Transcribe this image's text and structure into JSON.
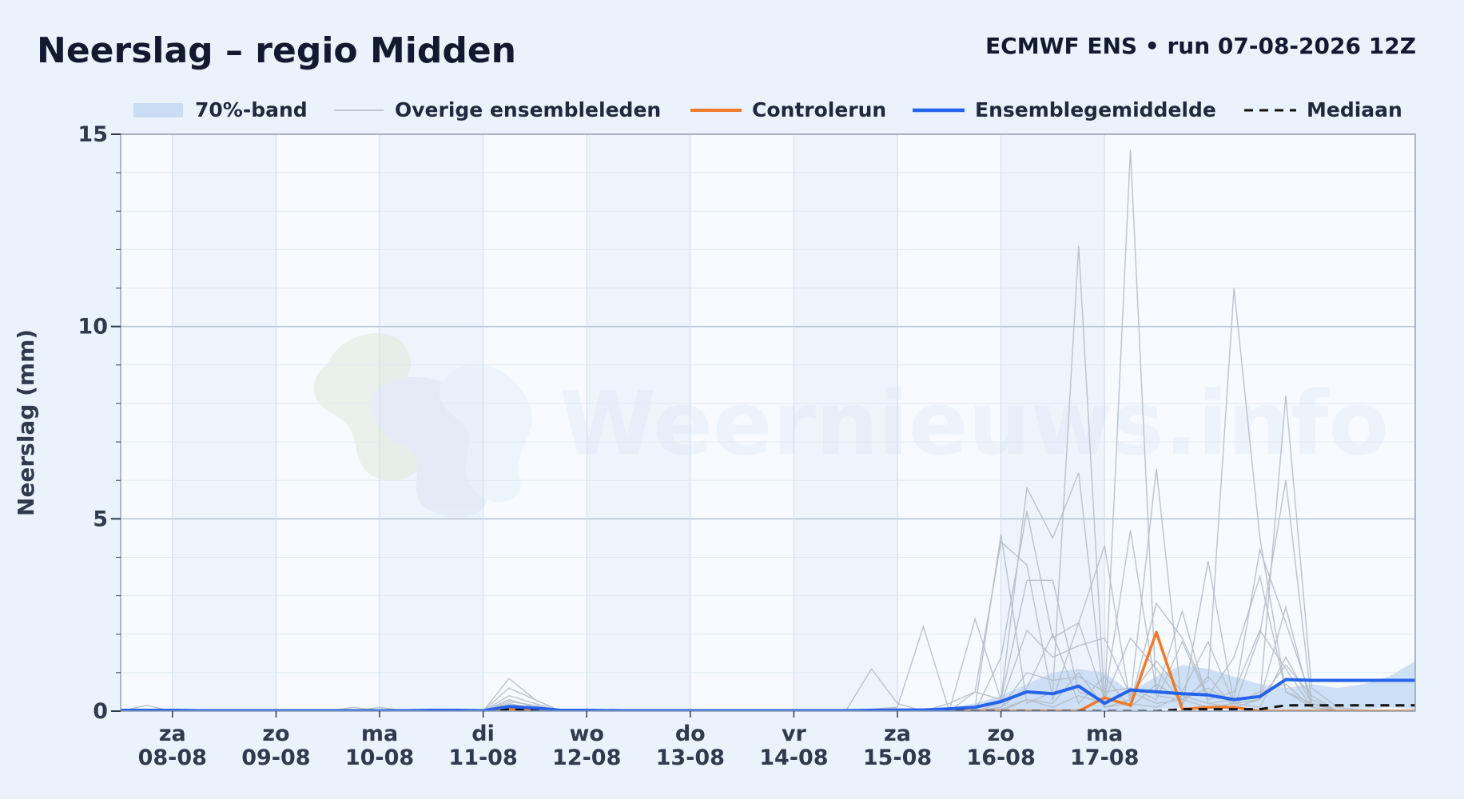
{
  "header": {
    "title": "Neerslag – regio Midden",
    "subtitle": "ECMWF ENS • run 07-08-2026 12Z"
  },
  "watermark": {
    "text": "Weernieuws.info"
  },
  "colors": {
    "band": "#c9ddf5",
    "members": "#b4bcc8",
    "control": "#f07a28",
    "mean": "#2563eb",
    "median": "#111111"
  },
  "chart_data": {
    "type": "line",
    "title": "Neerslag – regio Midden",
    "subtitle": "ECMWF ENS • run 07-08-2026 12Z",
    "ylabel": "Neerslag (mm)",
    "xlabel": "",
    "ylim": [
      0,
      15
    ],
    "yticks": [
      0,
      5,
      10,
      15
    ],
    "grid": true,
    "legend_position": "top",
    "x_start": "07-08-2026 12Z",
    "x_step_hours": 6,
    "x_days_from_start": [
      0.5,
      1.5,
      2.5,
      3.5,
      4.5,
      5.5,
      6.5,
      7.5,
      8.5,
      9.5
    ],
    "x_tick_labels": [
      {
        "day": "za",
        "date": "08-08"
      },
      {
        "day": "zo",
        "date": "09-08"
      },
      {
        "day": "ma",
        "date": "10-08"
      },
      {
        "day": "di",
        "date": "11-08"
      },
      {
        "day": "wo",
        "date": "12-08"
      },
      {
        "day": "do",
        "date": "13-08"
      },
      {
        "day": "vr",
        "date": "14-08"
      },
      {
        "day": "za",
        "date": "15-08"
      },
      {
        "day": "zo",
        "date": "16-08"
      },
      {
        "day": "ma",
        "date": "17-08"
      }
    ],
    "legend": [
      {
        "key": "band",
        "label": "70%-band"
      },
      {
        "key": "members",
        "label": "Overige ensembleleden"
      },
      {
        "key": "control",
        "label": "Controlerun"
      },
      {
        "key": "mean",
        "label": "Ensemblegemiddelde"
      },
      {
        "key": "median",
        "label": "Mediaan"
      }
    ],
    "band": {
      "name": "70%-band",
      "lower": [
        0,
        0,
        0,
        0,
        0,
        0,
        0,
        0,
        0,
        0,
        0,
        0,
        0,
        0,
        0,
        0,
        0,
        0,
        0,
        0,
        0,
        0,
        0,
        0,
        0,
        0,
        0,
        0,
        0,
        0,
        0,
        0,
        0,
        0,
        0,
        0,
        0,
        0,
        0,
        0,
        0.05,
        0.1,
        0.05,
        0.05,
        0.05,
        0.05,
        0.05,
        0.05,
        0.05,
        0.1,
        0.05
      ],
      "upper": [
        0,
        0,
        0,
        0,
        0,
        0,
        0,
        0,
        0,
        0,
        0,
        0,
        0,
        0,
        0,
        0.2,
        0.1,
        0,
        0,
        0,
        0,
        0,
        0,
        0,
        0,
        0,
        0,
        0,
        0,
        0.02,
        0.05,
        0.05,
        0.1,
        0.2,
        0.4,
        0.7,
        1.0,
        1.1,
        1.0,
        0.5,
        0.9,
        1.2,
        1.1,
        0.9,
        0.7,
        0.6,
        0.7,
        0.6,
        0.7,
        0.9,
        1.3
      ]
    },
    "series": [
      {
        "name": "Controlerun",
        "key": "control",
        "values": [
          0,
          0,
          0,
          0,
          0,
          0,
          0,
          0,
          0,
          0,
          0,
          0,
          0,
          0,
          0,
          0.05,
          0.05,
          0,
          0,
          0,
          0,
          0,
          0,
          0,
          0,
          0,
          0,
          0,
          0,
          0,
          0,
          0,
          0,
          0,
          0,
          0,
          0,
          0,
          0.35,
          0.15,
          2.05,
          0.05,
          0.1,
          0.1,
          0.0,
          0,
          0,
          0,
          0,
          0,
          0
        ]
      },
      {
        "name": "Ensemblegemiddelde",
        "key": "mean",
        "values": [
          0.02,
          0.02,
          0.02,
          0.01,
          0.01,
          0.01,
          0.01,
          0.01,
          0.01,
          0.01,
          0.01,
          0.01,
          0.02,
          0.02,
          0.01,
          0.12,
          0.08,
          0.02,
          0.02,
          0.01,
          0.01,
          0.01,
          0.01,
          0.01,
          0.01,
          0.01,
          0.01,
          0.01,
          0.01,
          0.02,
          0.03,
          0.03,
          0.06,
          0.1,
          0.25,
          0.5,
          0.45,
          0.65,
          0.2,
          0.55,
          0.5,
          0.45,
          0.42,
          0.3,
          0.38,
          0.82,
          0.8,
          0.8,
          0.8,
          0.8,
          0.8
        ]
      },
      {
        "name": "Mediaan",
        "key": "median",
        "values": [
          0,
          0,
          0,
          0,
          0,
          0,
          0,
          0,
          0,
          0,
          0,
          0,
          0,
          0,
          0,
          0.05,
          0.02,
          0,
          0,
          0,
          0,
          0,
          0,
          0,
          0,
          0,
          0,
          0,
          0,
          0,
          0,
          0,
          0,
          0,
          0,
          0,
          0,
          0,
          0,
          0,
          0,
          0.05,
          0.05,
          0.05,
          0.05,
          0.15,
          0.15,
          0.15,
          0.15,
          0.15,
          0.15
        ]
      }
    ],
    "members": [
      [
        0,
        0.15,
        0,
        0,
        0,
        0,
        0,
        0,
        0,
        0.1,
        0,
        0,
        0,
        0,
        0,
        0.4,
        0.2,
        0,
        0,
        0.05,
        0,
        0,
        0,
        0,
        0,
        0,
        0,
        0,
        0,
        0,
        0,
        0,
        0,
        0.1,
        4.6,
        0.2,
        0.5,
        12.1,
        0.2,
        0.5,
        0.2,
        0.3,
        0.1,
        0.2,
        0.3,
        1.2,
        0.4,
        0,
        0,
        0,
        0
      ],
      [
        0,
        0,
        0,
        0,
        0,
        0,
        0,
        0,
        0,
        0,
        0.1,
        0,
        0,
        0,
        0,
        0.85,
        0.3,
        0,
        0,
        0,
        0,
        0,
        0,
        0,
        0,
        0,
        0,
        0,
        0,
        0.05,
        0.1,
        2.2,
        0,
        0,
        0,
        0.3,
        0.1,
        0.4,
        0.2,
        14.6,
        0.4,
        0.3,
        0.8,
        11.0,
        4.5,
        0.5,
        0.1,
        0,
        0,
        0,
        0
      ],
      [
        0,
        0,
        0,
        0,
        0,
        0,
        0,
        0,
        0,
        0,
        0,
        0,
        0,
        0,
        0,
        0.3,
        0.1,
        0,
        0,
        0,
        0,
        0,
        0,
        0,
        0,
        0,
        0,
        0,
        0,
        1.1,
        0.2,
        0,
        0,
        2.4,
        0.3,
        5.8,
        4.5,
        6.2,
        0.1,
        0.3,
        6.3,
        0.1,
        3.9,
        0.2,
        0.3,
        8.2,
        0.6,
        0.1,
        0,
        0,
        0
      ],
      [
        0,
        0,
        0,
        0,
        0,
        0,
        0,
        0,
        0,
        0,
        0,
        0,
        0,
        0,
        0,
        0.2,
        0.05,
        0,
        0,
        0,
        0,
        0,
        0,
        0,
        0,
        0,
        0,
        0,
        0,
        0,
        0,
        0,
        0,
        0.5,
        4.4,
        3.8,
        0.3,
        2.3,
        4.3,
        0.2,
        2.8,
        1.9,
        0.4,
        1.4,
        3.5,
        0.5,
        0.2,
        0,
        0,
        0,
        0
      ],
      [
        0,
        0,
        0,
        0,
        0,
        0,
        0,
        0,
        0,
        0,
        0,
        0,
        0,
        0,
        0,
        0.1,
        0.1,
        0,
        0,
        0,
        0,
        0,
        0,
        0,
        0,
        0,
        0,
        0,
        0,
        0,
        0,
        0,
        0.2,
        0.5,
        0.3,
        3.4,
        3.4,
        0.5,
        0.3,
        4.7,
        0.5,
        2.6,
        0.2,
        0.3,
        4.2,
        2.3,
        0.3,
        0,
        0,
        0,
        0
      ],
      [
        0,
        0,
        0,
        0,
        0,
        0,
        0,
        0,
        0,
        0,
        0,
        0,
        0,
        0,
        0,
        0.6,
        0.3,
        0,
        0,
        0,
        0,
        0,
        0,
        0,
        0,
        0,
        0,
        0,
        0,
        0,
        0,
        0,
        0,
        0,
        1.4,
        5.2,
        1.9,
        2.3,
        0.3,
        1.9,
        1.1,
        0.2,
        0.9,
        0.1,
        2.0,
        6.0,
        0.2,
        0,
        0,
        0,
        0
      ],
      [
        0,
        0,
        0,
        0,
        0,
        0,
        0,
        0,
        0,
        0,
        0,
        0,
        0,
        0,
        0,
        0.25,
        0.15,
        0,
        0,
        0,
        0,
        0,
        0,
        0,
        0,
        0,
        0,
        0,
        0,
        0,
        0,
        0,
        0,
        0,
        0.2,
        2.1,
        1.4,
        1.7,
        1.9,
        0.4,
        1.3,
        0.5,
        1.8,
        0.2,
        0.1,
        1.4,
        0.2,
        0,
        0,
        0,
        0
      ],
      [
        0,
        0,
        0,
        0,
        0,
        0,
        0,
        0,
        0,
        0,
        0,
        0,
        0,
        0,
        0,
        0.1,
        0.05,
        0,
        0,
        0,
        0,
        0,
        0,
        0,
        0,
        0,
        0,
        0,
        0,
        0,
        0,
        0,
        0,
        0,
        0.1,
        1.0,
        0.8,
        0.9,
        0.5,
        0.6,
        0.3,
        1.8,
        0.3,
        0.5,
        2.1,
        1.1,
        0.1,
        0,
        0,
        0,
        0
      ],
      [
        0,
        0,
        0,
        0,
        0,
        0,
        0,
        0,
        0,
        0,
        0,
        0,
        0,
        0,
        0,
        0.05,
        0,
        0,
        0,
        0,
        0,
        0,
        0,
        0,
        0,
        0,
        0,
        0,
        0,
        0,
        0,
        0,
        0,
        0,
        0.1,
        0.6,
        2.0,
        0.2,
        0.9,
        0.1,
        0.7,
        0.3,
        0.6,
        0.2,
        0.5,
        0.7,
        0.1,
        0,
        0,
        0,
        0
      ],
      [
        0,
        0,
        0,
        0,
        0,
        0,
        0,
        0,
        0,
        0,
        0,
        0,
        0,
        0,
        0,
        0.15,
        0.1,
        0,
        0,
        0,
        0,
        0,
        0,
        0,
        0,
        0,
        0,
        0,
        0,
        0,
        0,
        0,
        0,
        0,
        0.05,
        0.3,
        0.2,
        1.0,
        0.1,
        0.2,
        0.1,
        0.4,
        0.2,
        0.1,
        0.3,
        2.7,
        0.1,
        0,
        0,
        0,
        0
      ]
    ]
  }
}
